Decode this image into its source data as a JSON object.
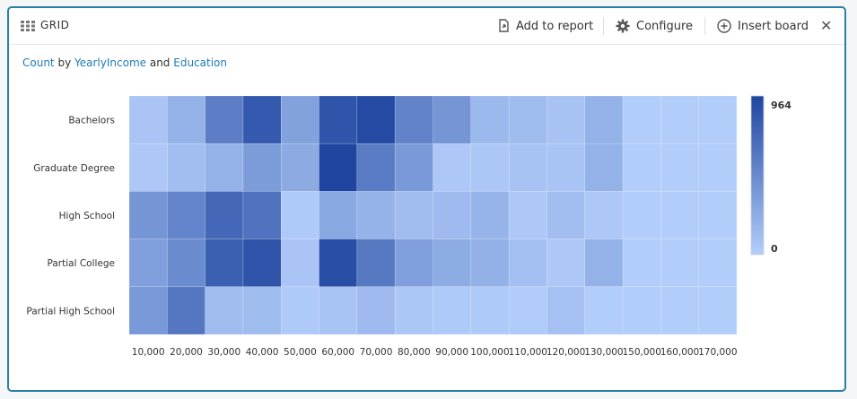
{
  "header": {
    "title": "GRID",
    "actions": {
      "add_to_report": "Add to report",
      "configure": "Configure",
      "insert_board": "Insert board"
    }
  },
  "subtitle": {
    "measure": "Count",
    "by": "by",
    "dim1": "YearlyIncome",
    "and": "and",
    "dim2": "Education"
  },
  "colors": {
    "accent": "#2a7fa8",
    "link": "#1f7bb5",
    "scale_low": "#b3cefb",
    "scale_high": "#1f45a0"
  },
  "chart_data": {
    "type": "heatmap",
    "x": [
      "10,000",
      "20,000",
      "30,000",
      "40,000",
      "50,000",
      "60,000",
      "70,000",
      "80,000",
      "90,000",
      "100,000",
      "110,000",
      "120,000",
      "130,000",
      "150,000",
      "160,000",
      "170,000"
    ],
    "y": [
      "Bachelors",
      "Graduate Degree",
      "High School",
      "Partial College",
      "Partial High School"
    ],
    "values": [
      [
        60,
        200,
        560,
        820,
        320,
        860,
        920,
        530,
        400,
        150,
        130,
        80,
        200,
        10,
        10,
        10
      ],
      [
        40,
        110,
        200,
        360,
        250,
        964,
        580,
        370,
        40,
        50,
        80,
        70,
        200,
        10,
        10,
        10
      ],
      [
        400,
        520,
        720,
        640,
        30,
        270,
        190,
        120,
        140,
        180,
        40,
        110,
        40,
        10,
        10,
        10
      ],
      [
        330,
        470,
        780,
        860,
        60,
        900,
        600,
        330,
        240,
        210,
        100,
        40,
        200,
        10,
        10,
        10
      ],
      [
        380,
        610,
        120,
        130,
        30,
        70,
        140,
        50,
        30,
        30,
        20,
        90,
        10,
        10,
        10,
        10
      ]
    ],
    "legend": {
      "max_label": "964",
      "min_label": "0",
      "min": 0,
      "max": 964
    }
  }
}
